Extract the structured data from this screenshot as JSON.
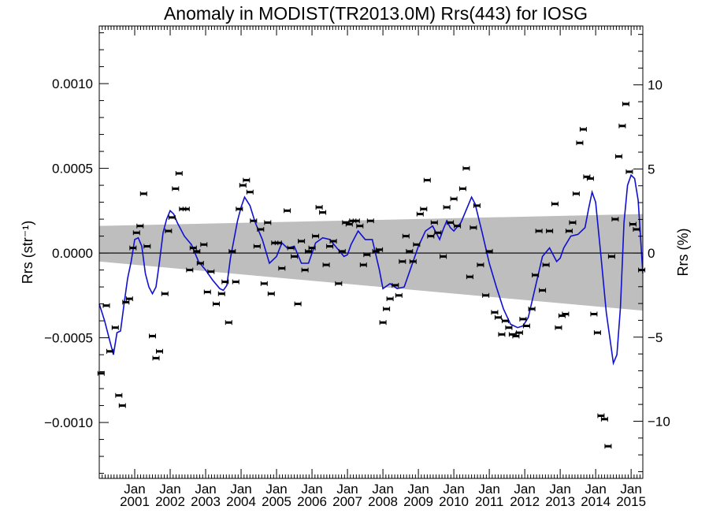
{
  "chart_data": {
    "type": "scatter",
    "title": "Anomaly in MODIST(TR2013.0M) Rrs(443) for IOSG",
    "ylabel_left": "Rrs (str⁻¹)",
    "ylabel_right": "Rrs (%)",
    "xlim": [
      2000.0,
      2015.33
    ],
    "ylim_left": [
      -0.00133,
      0.00134
    ],
    "ylim_right": [
      -13.4,
      13.5
    ],
    "x_tick_month": "Jan",
    "x_tick_years": [
      "2001",
      "2002",
      "2003",
      "2004",
      "2005",
      "2006",
      "2007",
      "2008",
      "2009",
      "2010",
      "2011",
      "2012",
      "2013",
      "2014",
      "2015"
    ],
    "y_ticks_left": [
      {
        "value": 0.001,
        "label": "0.0010"
      },
      {
        "value": 0.0005,
        "label": "0.0005"
      },
      {
        "value": 0.0,
        "label": "0.0000"
      },
      {
        "value": -0.0005,
        "label": "−0.0005"
      },
      {
        "value": -0.001,
        "label": "−0.0010"
      }
    ],
    "y_ticks_right": [
      {
        "value": 10,
        "label": "10"
      },
      {
        "value": 5,
        "label": "5"
      },
      {
        "value": 0,
        "label": "0"
      },
      {
        "value": -5,
        "label": "−5"
      },
      {
        "value": -10,
        "label": "−10"
      }
    ],
    "envelope": {
      "x": [
        2000.0,
        2015.33
      ],
      "upper": [
        0.00016,
        0.00023
      ],
      "lower": [
        -5e-05,
        -0.00034
      ],
      "color": "#bebebe"
    },
    "smooth_line": {
      "color": "#1010d0",
      "x": [
        2000.0,
        2000.15,
        2000.3,
        2000.4,
        2000.5,
        2000.6,
        2000.7,
        2000.8,
        2000.9,
        2001.0,
        2001.1,
        2001.2,
        2001.3,
        2001.4,
        2001.5,
        2001.6,
        2001.7,
        2001.8,
        2001.9,
        2002.0,
        2002.1,
        2002.2,
        2002.4,
        2002.6,
        2002.8,
        2003.0,
        2003.2,
        2003.4,
        2003.5,
        2003.6,
        2003.7,
        2003.8,
        2003.9,
        2004.0,
        2004.1,
        2004.25,
        2004.4,
        2004.6,
        2004.8,
        2005.0,
        2005.15,
        2005.3,
        2005.5,
        2005.7,
        2005.9,
        2006.1,
        2006.3,
        2006.5,
        2006.7,
        2006.9,
        2007.0,
        2007.1,
        2007.3,
        2007.5,
        2007.7,
        2007.9,
        2008.0,
        2008.2,
        2008.4,
        2008.6,
        2008.8,
        2009.0,
        2009.2,
        2009.4,
        2009.6,
        2009.7,
        2009.8,
        2009.9,
        2010.0,
        2010.2,
        2010.4,
        2010.5,
        2010.6,
        2010.8,
        2011.0,
        2011.2,
        2011.4,
        2011.6,
        2011.8,
        2011.95,
        2012.1,
        2012.3,
        2012.5,
        2012.7,
        2012.9,
        2013.0,
        2013.1,
        2013.3,
        2013.5,
        2013.7,
        2013.8,
        2013.9,
        2014.0,
        2014.15,
        2014.3,
        2014.5,
        2014.6,
        2014.7,
        2014.8,
        2014.9,
        2015.0,
        2015.1,
        2015.2,
        2015.33
      ],
      "y": [
        -0.0003,
        -0.0004,
        -0.00052,
        -0.0006,
        -0.00047,
        -0.00046,
        -0.0003,
        -0.00015,
        -5e-05,
        8e-05,
        9e-05,
        4e-05,
        -0.00012,
        -0.0002,
        -0.00024,
        -0.0002,
        -5e-05,
        0.00012,
        0.0002,
        0.00025,
        0.00023,
        0.00018,
        0.0001,
        5e-05,
        -5e-05,
        -0.0001,
        -0.00016,
        -0.00021,
        -0.00022,
        -0.00019,
        -3e-05,
        8e-05,
        0.00019,
        0.00027,
        0.00033,
        0.00028,
        0.00018,
        8e-05,
        -6e-05,
        -2e-05,
        6e-05,
        3e-05,
        4e-05,
        -6e-05,
        -6e-05,
        6e-05,
        9e-05,
        8e-05,
        3e-05,
        -2e-05,
        -1e-05,
        5e-05,
        0.00013,
        8e-05,
        8e-05,
        -0.0001,
        -0.00021,
        -0.00018,
        -0.00021,
        -0.0002,
        -8e-05,
        4e-05,
        0.00013,
        0.00016,
        8e-05,
        0.00014,
        0.00019,
        0.00015,
        0.00013,
        0.00018,
        0.00028,
        0.00033,
        0.00029,
        0.00012,
        -6e-05,
        -0.0002,
        -0.00033,
        -0.00042,
        -0.00044,
        -0.00043,
        -0.00038,
        -0.0002,
        -2e-05,
        3e-05,
        -5e-05,
        -3e-05,
        3e-05,
        0.0001,
        0.00011,
        0.00015,
        0.00026,
        0.00036,
        0.0003,
        -2e-05,
        -0.00035,
        -0.00065,
        -0.0006,
        -0.00032,
        0.00018,
        0.0004,
        0.00046,
        0.00044,
        0.00031,
        -0.00012
      ]
    },
    "points": {
      "x": [
        2000.05,
        2000.2,
        2000.3,
        2000.45,
        2000.55,
        2000.65,
        2000.75,
        2000.85,
        2000.95,
        2001.05,
        2001.15,
        2001.25,
        2001.35,
        2001.5,
        2001.6,
        2001.7,
        2001.85,
        2001.95,
        2002.05,
        2002.15,
        2002.25,
        2002.35,
        2002.45,
        2002.55,
        2002.65,
        2002.75,
        2002.85,
        2002.95,
        2003.05,
        2003.15,
        2003.3,
        2003.45,
        2003.55,
        2003.65,
        2003.75,
        2003.85,
        2003.95,
        2004.05,
        2004.15,
        2004.25,
        2004.35,
        2004.45,
        2004.55,
        2004.65,
        2004.75,
        2004.85,
        2004.95,
        2005.05,
        2005.15,
        2005.3,
        2005.4,
        2005.5,
        2005.6,
        2005.7,
        2005.8,
        2005.9,
        2006.0,
        2006.1,
        2006.2,
        2006.3,
        2006.4,
        2006.5,
        2006.6,
        2006.75,
        2006.85,
        2006.95,
        2007.05,
        2007.15,
        2007.25,
        2007.35,
        2007.45,
        2007.55,
        2007.65,
        2007.8,
        2007.9,
        2008.0,
        2008.1,
        2008.2,
        2008.35,
        2008.45,
        2008.55,
        2008.65,
        2008.75,
        2008.85,
        2008.95,
        2009.05,
        2009.15,
        2009.25,
        2009.35,
        2009.45,
        2009.55,
        2009.7,
        2009.8,
        2009.9,
        2010.0,
        2010.1,
        2010.25,
        2010.35,
        2010.45,
        2010.55,
        2010.65,
        2010.75,
        2010.9,
        2011.0,
        2011.15,
        2011.25,
        2011.35,
        2011.45,
        2011.55,
        2011.65,
        2011.75,
        2011.85,
        2011.95,
        2012.05,
        2012.2,
        2012.3,
        2012.4,
        2012.5,
        2012.6,
        2012.7,
        2012.85,
        2012.95,
        2013.05,
        2013.15,
        2013.25,
        2013.35,
        2013.45,
        2013.55,
        2013.65,
        2013.75,
        2013.85,
        2013.95,
        2014.05,
        2014.15,
        2014.25,
        2014.35,
        2014.45,
        2014.55,
        2014.65,
        2014.75,
        2014.85,
        2014.95,
        2015.05,
        2015.15,
        2015.3
      ],
      "y": [
        -0.00071,
        -0.00031,
        -0.00058,
        -0.00044,
        -0.00084,
        -0.0009,
        -0.00029,
        -0.00027,
        3e-05,
        0.00012,
        0.00016,
        0.00035,
        4e-05,
        -0.00049,
        -0.00062,
        -0.00058,
        -0.00024,
        0.00013,
        0.00021,
        0.00038,
        0.00047,
        0.00026,
        0.00026,
        -0.0001,
        3e-05,
        1e-05,
        -6e-05,
        5e-05,
        -0.00023,
        -0.00011,
        -0.0003,
        -0.00024,
        -0.00017,
        -0.00041,
        1e-05,
        -0.00017,
        0.00026,
        0.0004,
        0.00043,
        0.00036,
        0.00019,
        4e-05,
        0.00014,
        -0.00018,
        0.00018,
        -0.00024,
        6e-05,
        6e-05,
        -9e-05,
        0.00025,
        3e-05,
        -2e-05,
        -0.0003,
        7e-05,
        -0.0001,
        1e-05,
        3e-05,
        0.0001,
        0.00027,
        0.00024,
        -7e-05,
        4e-05,
        7e-05,
        -0.00018,
        1e-05,
        0.00018,
        0.00017,
        0.00019,
        0.00019,
        0.00016,
        -7e-05,
        -1e-05,
        0.00019,
        1e-05,
        2e-05,
        -0.00041,
        -0.00033,
        -0.00027,
        -0.00019,
        -0.00025,
        -5e-05,
        0.0001,
        1e-05,
        -5e-05,
        5e-05,
        0.00023,
        0.00026,
        0.00043,
        0.0001,
        0.00018,
        0.00012,
        -2e-05,
        0.00027,
        0.00018,
        0.00032,
        0.00016,
        0.00038,
        0.0005,
        -0.00014,
        0.00015,
        0.00028,
        -7e-05,
        -0.00025,
        1e-05,
        -0.00035,
        -0.00038,
        -0.00048,
        -0.0004,
        -0.00044,
        -0.00048,
        -0.00049,
        -0.00047,
        -0.00039,
        -0.00043,
        -0.00033,
        -0.00013,
        0.00013,
        -0.00022,
        -7e-05,
        0.00013,
        0.00029,
        -0.00044,
        -0.00037,
        -0.00036,
        0.00013,
        0.00018,
        0.00035,
        0.00065,
        0.00073,
        0.00045,
        0.00044,
        -0.00036,
        -0.00047,
        -0.00096,
        -0.00098,
        -0.00114,
        -2e-05,
        0.0002,
        0.00057,
        0.00075,
        0.00088,
        0.00048,
        0.00017,
        0.00014,
        -0.0001
      ]
    }
  }
}
